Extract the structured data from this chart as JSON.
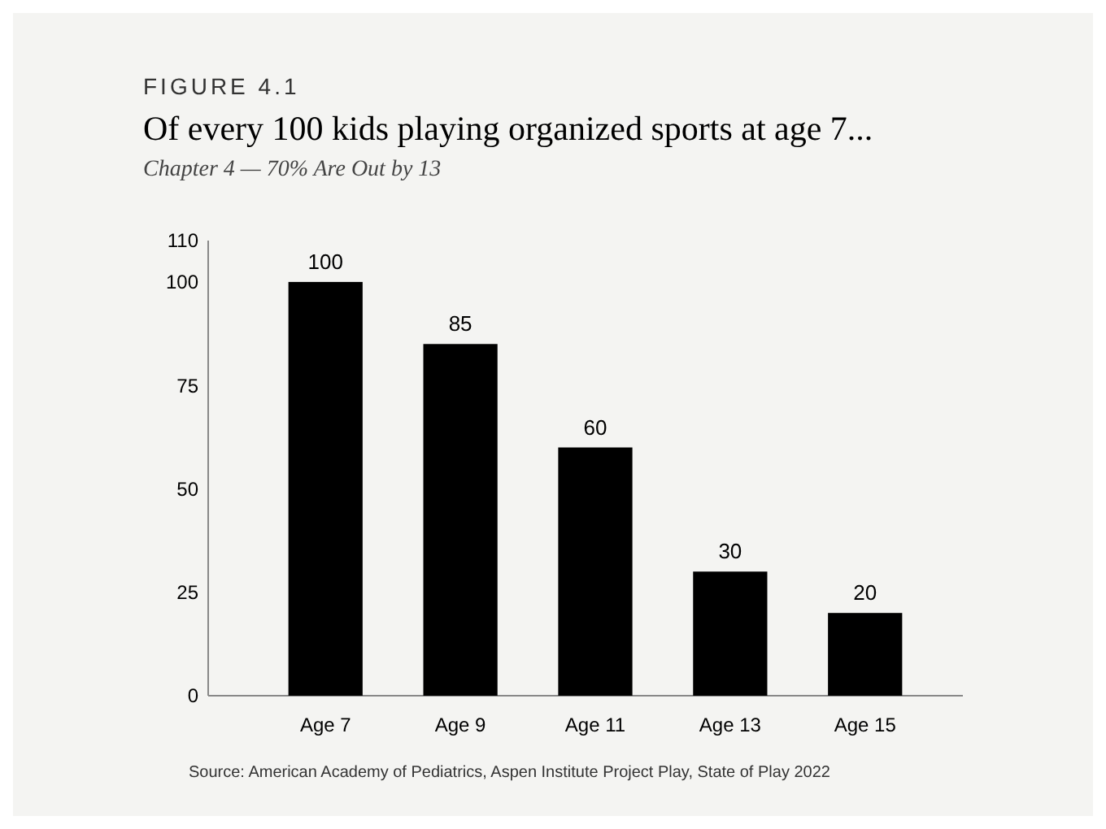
{
  "chart_data": {
    "type": "bar",
    "title": "Of every 100 kids playing organized sports at age 7...",
    "subtitle": "Chapter 4 — 70% Are Out by 13",
    "annotations": [
      "FIGURE 4.1",
      "Source: American Academy of Pediatrics, Aspen Institute Project Play, State of Play 2022"
    ],
    "categories": [
      "Age 7",
      "Age 9",
      "Age 11",
      "Age 13",
      "Age 15"
    ],
    "values": [
      100,
      85,
      60,
      30,
      20
    ],
    "color": "#000000",
    "ylim": [
      0,
      110
    ],
    "yticks": [
      0,
      25,
      50,
      75,
      100,
      110
    ],
    "grid": false,
    "data_labels": true
  }
}
